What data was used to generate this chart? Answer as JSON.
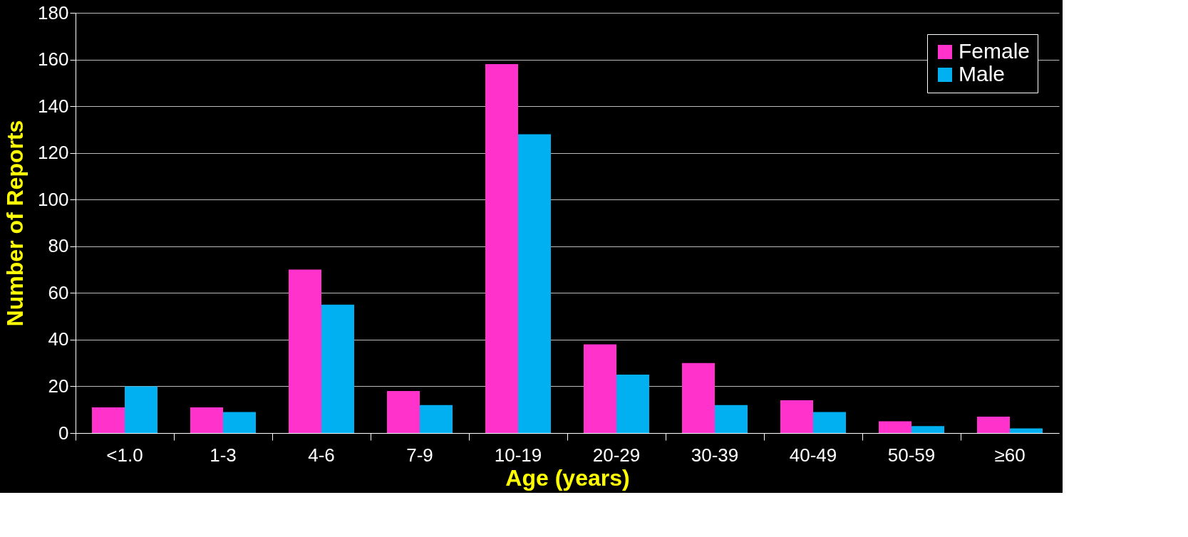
{
  "chart_data": {
    "type": "bar",
    "xlabel": "Age (years)",
    "ylabel": "Number of Reports",
    "categories": [
      "<1.0",
      "1-3",
      "4-6",
      "7-9",
      "10-19",
      "20-29",
      "30-39",
      "40-49",
      "50-59",
      "≥60"
    ],
    "series": [
      {
        "name": "Female",
        "color": "#ff33cc",
        "values": [
          11,
          11,
          70,
          18,
          158,
          38,
          30,
          14,
          5,
          7
        ]
      },
      {
        "name": "Male",
        "color": "#00b0f0",
        "values": [
          20,
          9,
          55,
          12,
          128,
          25,
          12,
          9,
          3,
          2
        ]
      }
    ],
    "ylim": [
      0,
      180
    ],
    "yticks": [
      0,
      20,
      40,
      60,
      80,
      100,
      120,
      140,
      160,
      180
    ],
    "grid": "y",
    "legend": "top right"
  }
}
